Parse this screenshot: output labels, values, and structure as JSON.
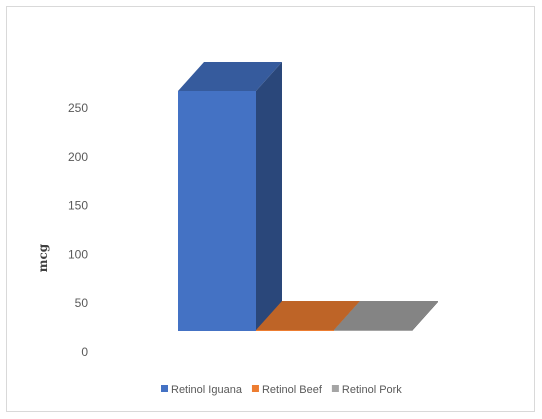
{
  "chart_data": {
    "type": "bar",
    "style": "3d",
    "ylabel": "mcg",
    "ylim": [
      0,
      250
    ],
    "yticks": [
      0,
      50,
      100,
      150,
      200,
      250
    ],
    "grid": false,
    "legend_position": "bottom",
    "series": [
      {
        "name": "Retinol Iguana",
        "values": [
          246
        ],
        "color": "#4472c4"
      },
      {
        "name": "Retinol Beef",
        "values": [
          1
        ],
        "color": "#ed7d31"
      },
      {
        "name": "Retinol Pork",
        "values": [
          1
        ],
        "color": "#a5a5a5"
      }
    ]
  }
}
